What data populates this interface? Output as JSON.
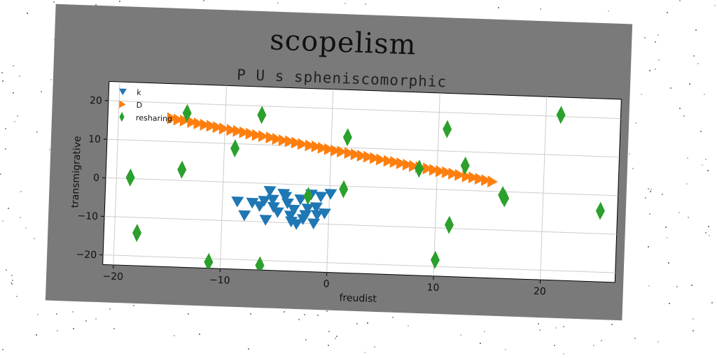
{
  "chart_data": {
    "type": "scatter",
    "title": "scopelism",
    "subtitle": "P U s spheniscomorphic",
    "xlabel": "freudist",
    "ylabel": "transmigrative",
    "xlim": [
      -21,
      27
    ],
    "ylim": [
      -22.5,
      25
    ],
    "xticks": [
      -20,
      -10,
      0,
      10,
      20
    ],
    "yticks": [
      -20,
      -10,
      0,
      10,
      20
    ],
    "grid": true,
    "legend_position": "top-left",
    "series": [
      {
        "name": "k",
        "marker": "triangle-down",
        "color": "#1f77b4",
        "x": [
          -8.6,
          -7.9,
          -7.2,
          -6.5,
          -5.9,
          -5.6,
          -5.2,
          -4.8,
          -4.3,
          -3.9,
          -3.6,
          -3.3,
          -3.0,
          -2.7,
          -2.4,
          -2.0,
          -1.7,
          -1.4,
          -1.1,
          -0.8,
          -0.4,
          0.1,
          -5.3,
          -6.1,
          -2.2,
          -4.1,
          -1.2,
          -3.5
        ],
        "y": [
          -5.0,
          -8.5,
          -5.2,
          -6.0,
          -9.5,
          -2.0,
          -6.1,
          -7.4,
          -2.6,
          -5.0,
          -8.2,
          -6.6,
          -10.3,
          -3.9,
          -9.0,
          -6.2,
          -2.5,
          -10.0,
          -7.8,
          -3.0,
          -7.3,
          -2.2,
          -4.2,
          -4.6,
          -7.9,
          -3.3,
          -5.8,
          -9.7
        ]
      },
      {
        "name": "D",
        "marker": "triangle-right",
        "color": "#ff7f0e",
        "x": [
          -15.0,
          -14.4,
          -13.8,
          -13.1,
          -12.5,
          -11.9,
          -11.3,
          -10.7,
          -10.1,
          -9.4,
          -8.8,
          -8.2,
          -7.6,
          -7.0,
          -6.4,
          -5.7,
          -5.1,
          -4.5,
          -3.9,
          -3.3,
          -2.7,
          -2.0,
          -1.4,
          -0.8,
          -0.2,
          0.4,
          1.0,
          1.7,
          2.3,
          2.9,
          3.5,
          4.1,
          4.7,
          5.4,
          6.0,
          6.6,
          7.2,
          7.8,
          8.4,
          9.1,
          9.7,
          10.3,
          10.9,
          11.5,
          12.1,
          12.8,
          13.4,
          14.0,
          14.6,
          15.2
        ],
        "y": [
          16.0,
          15.7,
          15.5,
          15.2,
          14.9,
          14.6,
          14.4,
          14.1,
          13.8,
          13.5,
          13.3,
          13.0,
          12.7,
          12.4,
          12.2,
          11.9,
          11.6,
          11.3,
          11.1,
          10.8,
          10.5,
          10.2,
          10.0,
          9.7,
          9.4,
          9.1,
          8.9,
          8.6,
          8.3,
          8.0,
          7.8,
          7.5,
          7.2,
          6.9,
          6.7,
          6.4,
          6.1,
          5.8,
          5.6,
          5.3,
          5.0,
          4.7,
          4.5,
          4.2,
          3.9,
          3.6,
          3.4,
          3.1,
          2.8,
          2.5
        ]
      },
      {
        "name": "resharing",
        "marker": "thin-diamond",
        "color": "#2ca02c",
        "x": [
          -18.7,
          -17.9,
          -13.9,
          -13.6,
          -11.1,
          -9.0,
          -6.6,
          -6.3,
          -2.0,
          1.3,
          1.5,
          8.3,
          10.1,
          10.8,
          11.3,
          12.6,
          16.2,
          16.4,
          21.4,
          25.4
        ],
        "y": [
          0.3,
          -14.0,
          2.8,
          17.5,
          -20.9,
          8.8,
          17.7,
          -21.3,
          -2.9,
          -0.8,
          12.7,
          5.2,
          -18.3,
          15.7,
          -9.1,
          6.4,
          -0.9,
          -1.7,
          20.4,
          -4.1
        ]
      }
    ]
  }
}
